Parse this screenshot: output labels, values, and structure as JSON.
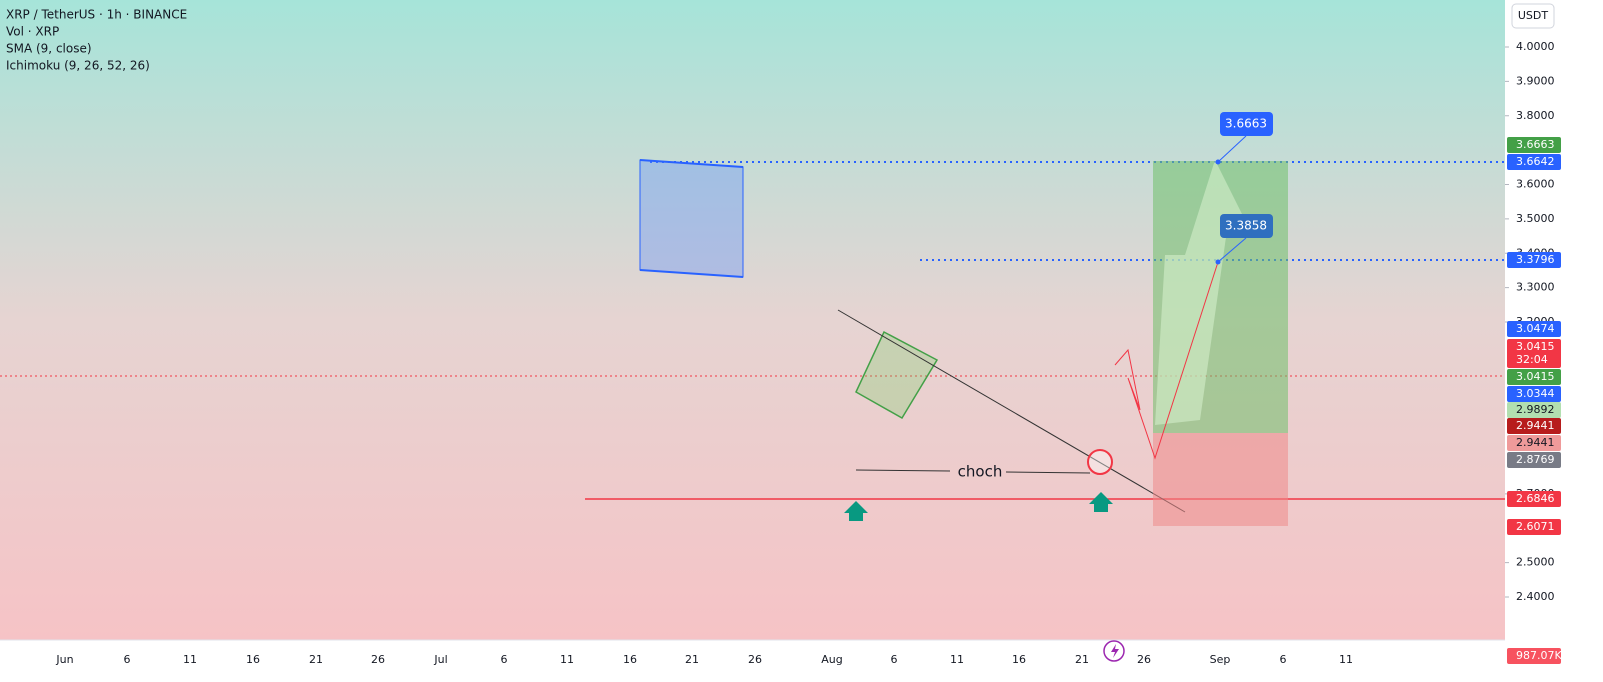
{
  "header": {
    "symbol": "XRP / TetherUS · 1h · BINANCE",
    "indicators": [
      "Vol · XRP",
      "SMA (9, close)",
      "Ichimoku (9, 26, 52, 26)"
    ]
  },
  "currency_button": "USDT",
  "price_axis": {
    "ticks": [
      {
        "value": 4.0,
        "label": "4.0000"
      },
      {
        "value": 3.9,
        "label": "3.9000"
      },
      {
        "value": 3.8,
        "label": "3.8000"
      },
      {
        "value": 3.6,
        "label": "3.6000"
      },
      {
        "value": 3.5,
        "label": "3.5000"
      },
      {
        "value": 3.4,
        "label": "3.4000"
      },
      {
        "value": 3.3,
        "label": "3.3000"
      },
      {
        "value": 3.2,
        "label": "3.2000"
      },
      {
        "value": 2.7,
        "label": "2.7000"
      },
      {
        "value": 2.5,
        "label": "2.5000"
      },
      {
        "value": 2.4,
        "label": "2.4000"
      }
    ]
  },
  "time_axis": {
    "labels": [
      "Jun",
      "6",
      "11",
      "16",
      "21",
      "26",
      "Jul",
      "6",
      "11",
      "16",
      "21",
      "26",
      "Aug",
      "6",
      "11",
      "16",
      "21",
      "26",
      "Sep",
      "6",
      "11"
    ]
  },
  "price_tags": [
    {
      "label": "3.6663",
      "color": "#43a047"
    },
    {
      "label": "3.6642",
      "color": "#2962ff"
    },
    {
      "label": "3.3796",
      "color": "#2962ff"
    },
    {
      "label": "3.0474",
      "color": "#2962ff"
    },
    {
      "label": "3.0415",
      "color": "#f23645"
    },
    {
      "label": "32:04",
      "color": "#f23645"
    },
    {
      "label": "3.0415",
      "color": "#43a047"
    },
    {
      "label": "3.0344",
      "color": "#2962ff"
    },
    {
      "label": "2.9892",
      "color": "#b2dfb0"
    },
    {
      "label": "2.9441",
      "color": "#b71c1c"
    },
    {
      "label": "2.9441",
      "color": "#ef9a9a"
    },
    {
      "label": "2.8769",
      "color": "#787b86"
    },
    {
      "label": "2.6846",
      "color": "#f23645"
    },
    {
      "label": "2.6071",
      "color": "#f23645"
    },
    {
      "label": "987.07K",
      "color": "#f7525f"
    }
  ],
  "annotations": {
    "choch": "choch",
    "callouts": [
      "3.6663",
      "3.3858"
    ]
  }
}
